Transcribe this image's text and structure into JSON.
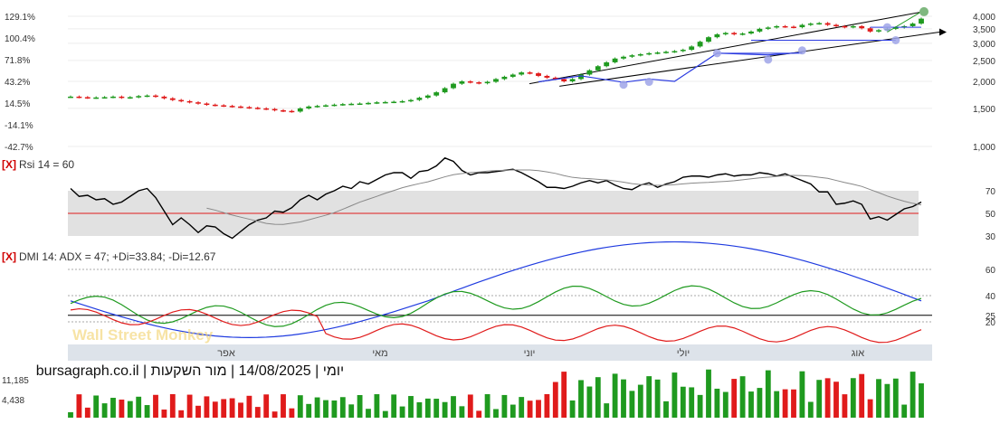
{
  "chart_data": {
    "type": "candlestick",
    "panels": {
      "price": {
        "left_axis_ticks": [
          "129.1%",
          "100.4%",
          "71.8%",
          "43.2%",
          "14.5%",
          "-14.1%",
          "-42.7%"
        ],
        "right_axis_ticks": [
          {
            "label": "4,000",
            "value": 4000
          },
          {
            "label": "3,500",
            "value": 3500
          },
          {
            "label": "3,000",
            "value": 3000
          },
          {
            "label": "2,500",
            "value": 2500
          },
          {
            "label": "2,000",
            "value": 2000
          },
          {
            "label": "1,500",
            "value": 1500
          },
          {
            "label": "1,000",
            "value": 1000
          }
        ],
        "close": [
          1700,
          1690,
          1680,
          1685,
          1690,
          1700,
          1680,
          1690,
          1710,
          1720,
          1700,
          1670,
          1640,
          1620,
          1600,
          1580,
          1560,
          1550,
          1540,
          1530,
          1520,
          1510,
          1500,
          1490,
          1470,
          1460,
          1450,
          1500,
          1530,
          1540,
          1550,
          1560,
          1570,
          1575,
          1580,
          1590,
          1600,
          1605,
          1610,
          1620,
          1640,
          1680,
          1720,
          1780,
          1860,
          1950,
          2000,
          1980,
          1960,
          1990,
          2050,
          2100,
          2150,
          2200,
          2180,
          2120,
          2080,
          2050,
          2000,
          2050,
          2150,
          2250,
          2350,
          2450,
          2550,
          2600,
          2640,
          2670,
          2700,
          2720,
          2740,
          2760,
          2800,
          2900,
          3050,
          3200,
          3300,
          3350,
          3300,
          3330,
          3400,
          3500,
          3550,
          3600,
          3580,
          3560,
          3650,
          3700,
          3720,
          3650,
          3600,
          3560,
          3600,
          3520,
          3400,
          3450,
          3500,
          3550,
          3600,
          3700,
          3900
        ]
      },
      "rsi": {
        "label": "Rsi 14 = 60",
        "value": 60,
        "ticks": [
          70,
          50,
          30
        ],
        "band": [
          30,
          70
        ],
        "midline": 50,
        "rsi": [
          72,
          65,
          66,
          62,
          63,
          58,
          60,
          65,
          70,
          72,
          64,
          52,
          40,
          46,
          40,
          33,
          39,
          38,
          32,
          28,
          34,
          40,
          44,
          46,
          52,
          51,
          55,
          62,
          66,
          62,
          67,
          70,
          74,
          72,
          78,
          76,
          80,
          84,
          86,
          86,
          81,
          87,
          88,
          92,
          99,
          96,
          88,
          84,
          86,
          86,
          87,
          88,
          89,
          86,
          82,
          78,
          73,
          73,
          72,
          74,
          77,
          79,
          77,
          79,
          75,
          72,
          71,
          75,
          77,
          73,
          76,
          78,
          82,
          83,
          83,
          82,
          84,
          85,
          83,
          84,
          84,
          86,
          85,
          83,
          85,
          82,
          79,
          76,
          69,
          69,
          58,
          59,
          61,
          58,
          45,
          47,
          44,
          49,
          54,
          56,
          60
        ],
        "rsi_ma": [
          null,
          null,
          null,
          null,
          null,
          null,
          null,
          null,
          null,
          null,
          null,
          null,
          null,
          null,
          null,
          null,
          null,
          null,
          null,
          null,
          null,
          null,
          null,
          null,
          null,
          null,
          null,
          null,
          null,
          null,
          null,
          null,
          null,
          null,
          null,
          null,
          null,
          null,
          null,
          null,
          null,
          null,
          null,
          null,
          null,
          null,
          null,
          null,
          null,
          null,
          null,
          null,
          null,
          null,
          null,
          null,
          null,
          null,
          null,
          null,
          null,
          null,
          null,
          null,
          null,
          null,
          null,
          null,
          null,
          null,
          null,
          null,
          null,
          null,
          null,
          null,
          null,
          null,
          null,
          null,
          null,
          null,
          null,
          null,
          null,
          null,
          null,
          null,
          null,
          null,
          null,
          null,
          null,
          null,
          null,
          null,
          null,
          null,
          null,
          null,
          null
        ]
      },
      "dmi": {
        "label": "DMI 14: ADX = 47; +Di=33.84; -Di=12.67",
        "adx": 47,
        "plus_di": 33.84,
        "minus_di": 12.67,
        "ticks": [
          60,
          40,
          25,
          20
        ],
        "highlighted_level": 25
      },
      "volume": {
        "ticks": [
          "11,185",
          "4,438"
        ]
      }
    },
    "month_labels": [
      "אפר",
      "מאי",
      "יוני",
      "יולי",
      "אוג"
    ],
    "footer_text": "יומי | 14/08/2025 | מור השקעות | bursagraph.co.il",
    "watermark": "Wall Street Monkey",
    "colors": {
      "up": "#1f9a1f",
      "down": "#e01b1b",
      "rsi": "#000000",
      "rsi_ma": "#888888",
      "adx": "#1f3be0",
      "plus_di": "#1f9a1f",
      "minus_di": "#e01b1b",
      "midline": "#e01b1b",
      "band": "#d9d9d9",
      "trend": "#000000",
      "pattern": "#2a3ae0",
      "marker": "#9fa5e8"
    }
  }
}
